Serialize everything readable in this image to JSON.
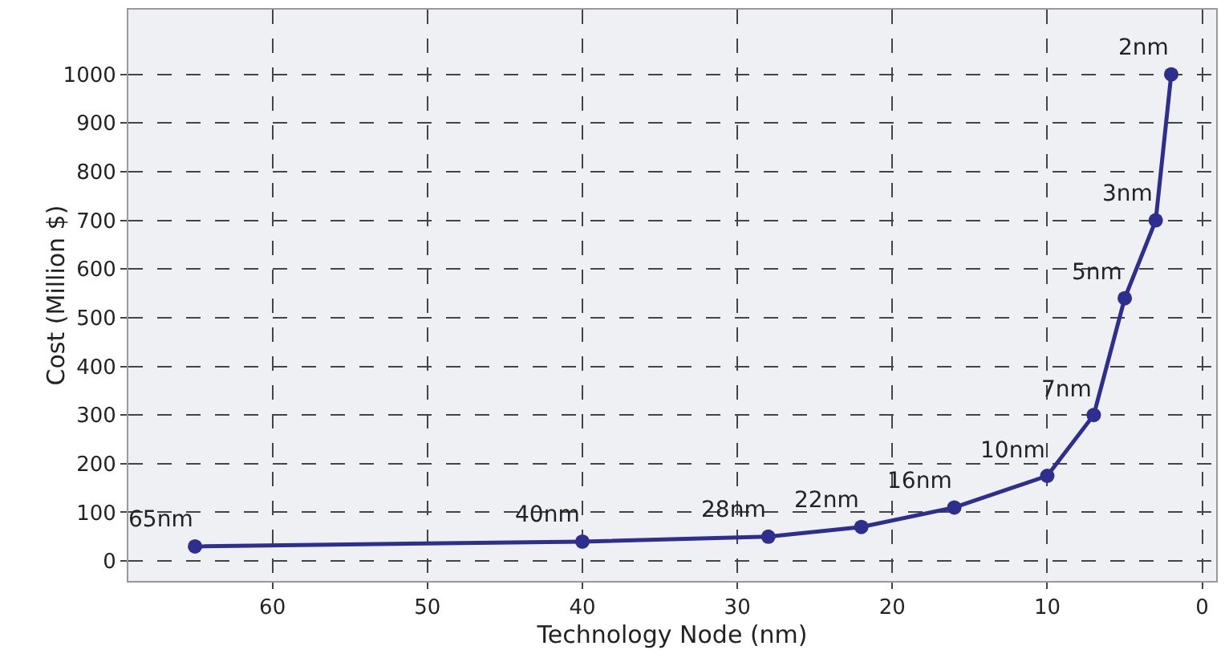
{
  "chart_data": {
    "type": "line",
    "xlabel": "Technology Node (nm)",
    "ylabel": "Cost (Million $)",
    "x": [
      65,
      40,
      28,
      22,
      16,
      10,
      7,
      5,
      3,
      2
    ],
    "series": [
      {
        "color": "#2e2e8f",
        "values": [
          30,
          40,
          50,
          70,
          110,
          175,
          300,
          540,
          700,
          1000
        ]
      }
    ],
    "xlim": [
      69.3,
      -0.9
    ],
    "xticks": [
      60,
      50,
      40,
      30,
      20,
      10,
      0
    ],
    "ylim": [
      -41,
      1133
    ],
    "yticks": [
      0,
      100,
      200,
      300,
      400,
      500,
      600,
      700,
      800,
      900,
      1000
    ],
    "grid": true,
    "marker": "circle",
    "line_style": "solid",
    "annotations": [
      {
        "text": "65nm",
        "x": 65,
        "y": 30
      },
      {
        "text": "40nm",
        "x": 40,
        "y": 40
      },
      {
        "text": "28nm",
        "x": 28,
        "y": 50
      },
      {
        "text": "22nm",
        "x": 22,
        "y": 70
      },
      {
        "text": "16nm",
        "x": 16,
        "y": 110
      },
      {
        "text": "10nm",
        "x": 10,
        "y": 175
      },
      {
        "text": "7nm",
        "x": 7,
        "y": 300
      },
      {
        "text": "5nm",
        "x": 5,
        "y": 540
      },
      {
        "text": "3nm",
        "x": 3,
        "y": 700
      },
      {
        "text": "2nm",
        "x": 2,
        "y": 1000
      }
    ]
  }
}
